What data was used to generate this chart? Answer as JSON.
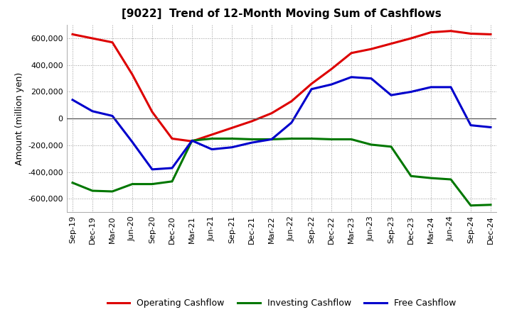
{
  "title": "[9022]  Trend of 12-Month Moving Sum of Cashflows",
  "ylabel": "Amount (million yen)",
  "x_labels": [
    "Sep-19",
    "Dec-19",
    "Mar-20",
    "Jun-20",
    "Sep-20",
    "Dec-20",
    "Mar-21",
    "Jun-21",
    "Sep-21",
    "Dec-21",
    "Mar-22",
    "Jun-22",
    "Sep-22",
    "Dec-22",
    "Mar-23",
    "Jun-23",
    "Sep-23",
    "Dec-23",
    "Mar-24",
    "Jun-24",
    "Sep-24",
    "Dec-24"
  ],
  "operating": [
    630000,
    600000,
    570000,
    330000,
    50000,
    -150000,
    -170000,
    -120000,
    -70000,
    -20000,
    40000,
    130000,
    260000,
    370000,
    490000,
    520000,
    560000,
    600000,
    645000,
    655000,
    635000,
    630000
  ],
  "investing": [
    -480000,
    -540000,
    -545000,
    -490000,
    -490000,
    -470000,
    -165000,
    -150000,
    -150000,
    -155000,
    -155000,
    -150000,
    -150000,
    -155000,
    -155000,
    -195000,
    -210000,
    -430000,
    -445000,
    -455000,
    -650000,
    -645000
  ],
  "free": [
    140000,
    55000,
    20000,
    -175000,
    -380000,
    -370000,
    -165000,
    -230000,
    -215000,
    -180000,
    -155000,
    -30000,
    220000,
    255000,
    310000,
    300000,
    175000,
    200000,
    235000,
    235000,
    -50000,
    -65000
  ],
  "operating_color": "#dd0000",
  "investing_color": "#007700",
  "free_color": "#0000cc",
  "ylim": [
    -700000,
    700000
  ],
  "yticks": [
    -600000,
    -400000,
    -200000,
    0,
    200000,
    400000,
    600000
  ],
  "background_color": "#ffffff",
  "grid_color": "#999999",
  "linewidth": 2.2,
  "title_fontsize": 11,
  "axis_fontsize": 8,
  "ylabel_fontsize": 9
}
